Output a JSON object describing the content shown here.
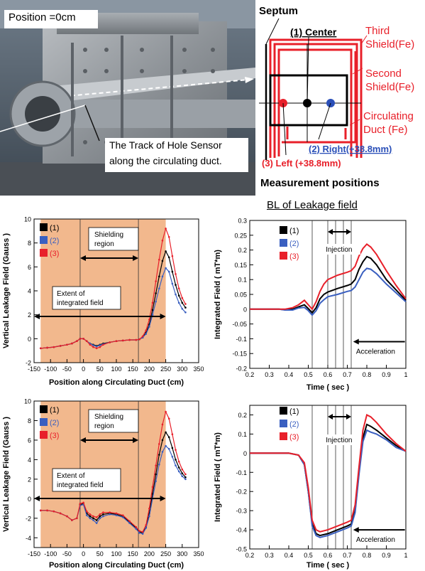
{
  "photo": {
    "position_label": "Position =0cm",
    "track_label": [
      "The Track of Hole Sensor",
      "along the circulating duct."
    ]
  },
  "schematic": {
    "septum": "Septum",
    "third_shield": [
      "Third",
      "Shield(Fe)"
    ],
    "second_shield": [
      "Second",
      "Shield(Fe)"
    ],
    "duct": [
      "Circulating",
      "Duct (Fe)"
    ],
    "center": "(1) Center",
    "right": "(2) Right(+38.8mm)",
    "left": "(3) Left (+38.8mm)",
    "caption": "Measurement positions",
    "colors": {
      "center": "#000000",
      "right": "#2a4fb8",
      "left": "#e8202a"
    }
  },
  "section_title": "BL of Leakage field",
  "legend": [
    "(1)",
    "(2)",
    "(3)"
  ],
  "colors": {
    "s1": "#000000",
    "s2": "#3a5fc0",
    "s3": "#e8202a",
    "shade": "#f2b88d"
  },
  "chart_data": [
    {
      "type": "line",
      "panel": "top-left",
      "xlabel": "Position along Circulating Duct (cm)",
      "ylabel": "Vertical  Leakage Field (Gauss )",
      "xlim": [
        -150,
        350
      ],
      "ylim": [
        -2,
        10
      ],
      "xticks": [
        -150,
        -100,
        -50,
        0,
        50,
        100,
        150,
        200,
        250,
        300,
        350
      ],
      "yticks": [
        -2,
        0,
        2,
        4,
        6,
        8,
        10
      ],
      "shaded_range": [
        -130,
        250
      ],
      "vlines": [
        -10,
        167
      ],
      "annotations": [
        "Shielding region",
        "Extent of integrated field"
      ],
      "x": [
        -130,
        -110,
        -90,
        -70,
        -50,
        -35,
        -20,
        -10,
        0,
        10,
        20,
        30,
        40,
        50,
        60,
        80,
        100,
        120,
        140,
        160,
        170,
        180,
        190,
        200,
        210,
        220,
        230,
        240,
        250,
        260,
        270,
        280,
        290,
        300,
        310
      ],
      "series": [
        {
          "name": "(1)",
          "values": [
            -0.8,
            -0.75,
            -0.7,
            -0.6,
            -0.5,
            -0.4,
            -0.2,
            0.0,
            0.0,
            -0.2,
            -0.4,
            -0.5,
            -0.6,
            -0.5,
            -0.4,
            -0.3,
            -0.2,
            -0.15,
            -0.1,
            -0.1,
            -0.05,
            0.1,
            0.5,
            1.2,
            2.4,
            3.8,
            5.2,
            6.5,
            7.3,
            6.8,
            5.6,
            4.5,
            3.6,
            3.0,
            2.6
          ]
        },
        {
          "name": "(2)",
          "values": [
            -0.8,
            -0.75,
            -0.7,
            -0.6,
            -0.5,
            -0.4,
            -0.2,
            0.0,
            0.0,
            -0.2,
            -0.4,
            -0.55,
            -0.65,
            -0.55,
            -0.45,
            -0.3,
            -0.2,
            -0.15,
            -0.1,
            -0.1,
            -0.05,
            0.1,
            0.4,
            1.0,
            2.0,
            3.1,
            4.2,
            5.2,
            5.9,
            5.6,
            4.6,
            3.7,
            3.0,
            2.5,
            2.2
          ]
        },
        {
          "name": "(3)",
          "values": [
            -0.8,
            -0.75,
            -0.7,
            -0.6,
            -0.5,
            -0.4,
            -0.2,
            0.0,
            0.0,
            -0.2,
            -0.5,
            -0.7,
            -0.8,
            -0.7,
            -0.5,
            -0.3,
            -0.2,
            -0.15,
            -0.1,
            -0.1,
            -0.05,
            0.2,
            0.7,
            1.6,
            3.0,
            4.8,
            6.6,
            8.2,
            9.2,
            8.5,
            6.9,
            5.4,
            4.2,
            3.4,
            2.9
          ]
        }
      ]
    },
    {
      "type": "line",
      "panel": "top-right",
      "xlabel": "Time ( sec )",
      "ylabel": "Integrated Field ( mT*m)",
      "xlim": [
        0.2,
        1.0
      ],
      "ylim": [
        -0.2,
        0.3
      ],
      "xticks": [
        0.2,
        0.3,
        0.4,
        0.5,
        0.6,
        0.7,
        0.8,
        0.9,
        1.0
      ],
      "yticks": [
        -0.2,
        -0.15,
        -0.1,
        -0.05,
        0,
        0.05,
        0.1,
        0.15,
        0.2,
        0.25,
        0.3
      ],
      "vlines": [
        0.52,
        0.6,
        0.64,
        0.68,
        0.72
      ],
      "annotations": [
        "Injection",
        "Acceleration"
      ],
      "x": [
        0.2,
        0.3,
        0.35,
        0.38,
        0.42,
        0.45,
        0.48,
        0.5,
        0.52,
        0.54,
        0.56,
        0.58,
        0.6,
        0.65,
        0.7,
        0.72,
        0.74,
        0.76,
        0.78,
        0.8,
        0.82,
        0.85,
        0.9,
        0.95,
        1.0
      ],
      "series": [
        {
          "name": "(1)",
          "values": [
            0,
            0,
            0,
            -0.002,
            0.0,
            0.008,
            0.015,
            0.002,
            -0.012,
            0.005,
            0.035,
            0.05,
            0.058,
            0.07,
            0.08,
            0.085,
            0.1,
            0.135,
            0.16,
            0.178,
            0.172,
            0.15,
            0.1,
            0.065,
            0.03
          ]
        },
        {
          "name": "(2)",
          "values": [
            0,
            0,
            0,
            -0.003,
            -0.003,
            0.004,
            0.006,
            -0.005,
            -0.02,
            -0.005,
            0.02,
            0.032,
            0.042,
            0.05,
            0.06,
            0.063,
            0.075,
            0.1,
            0.125,
            0.138,
            0.135,
            0.12,
            0.085,
            0.055,
            0.025
          ]
        },
        {
          "name": "(3)",
          "values": [
            0,
            0,
            0,
            0.0,
            0.005,
            0.015,
            0.03,
            0.015,
            0.0,
            0.025,
            0.06,
            0.085,
            0.1,
            0.115,
            0.125,
            0.13,
            0.145,
            0.18,
            0.205,
            0.22,
            0.21,
            0.185,
            0.13,
            0.08,
            0.035
          ]
        }
      ]
    },
    {
      "type": "line",
      "panel": "bottom-left",
      "xlabel": "Position along Circulating Duct (cm)",
      "ylabel": "Vertical  Leakage Field (Gauss )",
      "xlim": [
        -150,
        350
      ],
      "ylim": [
        -5,
        10
      ],
      "xticks": [
        -150,
        -100,
        -50,
        0,
        50,
        100,
        150,
        200,
        250,
        300,
        350
      ],
      "yticks": [
        -4,
        -2,
        0,
        2,
        4,
        6,
        8,
        10
      ],
      "shaded_range": [
        -130,
        250
      ],
      "vlines": [
        -10,
        167
      ],
      "annotations": [
        "Shielding region",
        "Extent of integrated field"
      ],
      "x": [
        -130,
        -110,
        -90,
        -70,
        -50,
        -35,
        -20,
        -10,
        0,
        10,
        20,
        30,
        40,
        50,
        60,
        80,
        100,
        120,
        140,
        160,
        170,
        180,
        190,
        200,
        210,
        220,
        230,
        240,
        250,
        260,
        270,
        280,
        290,
        300,
        310
      ],
      "series": [
        {
          "name": "(1)",
          "values": [
            -1.2,
            -1.2,
            -1.3,
            -1.5,
            -1.8,
            -2.2,
            -2.0,
            -0.6,
            -0.5,
            -1.5,
            -1.8,
            -2.0,
            -2.2,
            -1.8,
            -1.6,
            -1.5,
            -1.6,
            -1.8,
            -2.4,
            -3.0,
            -3.4,
            -3.5,
            -2.9,
            -1.5,
            0.5,
            2.5,
            4.5,
            6.0,
            6.8,
            6.3,
            5.2,
            4.0,
            3.2,
            2.6,
            2.2
          ]
        },
        {
          "name": "(2)",
          "values": [
            -1.2,
            -1.2,
            -1.3,
            -1.5,
            -1.8,
            -2.2,
            -2.0,
            -0.7,
            -0.6,
            -1.7,
            -2.0,
            -2.2,
            -2.5,
            -2.0,
            -1.8,
            -1.6,
            -1.7,
            -1.9,
            -2.5,
            -3.1,
            -3.5,
            -3.6,
            -3.0,
            -1.8,
            0.0,
            1.8,
            3.5,
            4.8,
            5.4,
            5.1,
            4.3,
            3.4,
            2.8,
            2.3,
            2.0
          ]
        },
        {
          "name": "(3)",
          "values": [
            -1.2,
            -1.2,
            -1.3,
            -1.5,
            -1.8,
            -2.2,
            -2.0,
            -0.5,
            -0.4,
            -1.3,
            -1.6,
            -1.8,
            -1.9,
            -1.6,
            -1.4,
            -1.4,
            -1.5,
            -1.7,
            -2.3,
            -2.9,
            -3.3,
            -3.4,
            -2.7,
            -1.0,
            1.2,
            3.4,
            5.6,
            7.6,
            8.9,
            8.2,
            6.6,
            5.0,
            3.8,
            3.0,
            2.5
          ]
        }
      ]
    },
    {
      "type": "line",
      "panel": "bottom-right",
      "xlabel": "Time ( sec )",
      "ylabel": "Integrated Field ( mT*m)",
      "xlim": [
        0.2,
        1.0
      ],
      "ylim": [
        -0.5,
        0.25
      ],
      "xticks": [
        0.2,
        0.3,
        0.4,
        0.5,
        0.6,
        0.7,
        0.8,
        0.9,
        1.0
      ],
      "yticks": [
        -0.5,
        -0.4,
        -0.3,
        -0.2,
        -0.1,
        0,
        0.1,
        0.2
      ],
      "vlines": [
        0.52,
        0.6,
        0.64,
        0.68,
        0.72
      ],
      "annotations": [
        "Injection",
        "Acceleration"
      ],
      "x": [
        0.2,
        0.3,
        0.4,
        0.45,
        0.48,
        0.5,
        0.52,
        0.54,
        0.56,
        0.6,
        0.65,
        0.7,
        0.72,
        0.74,
        0.76,
        0.78,
        0.8,
        0.82,
        0.85,
        0.9,
        0.95,
        1.0
      ],
      "series": [
        {
          "name": "(1)",
          "values": [
            0,
            0,
            0,
            -0.01,
            -0.06,
            -0.2,
            -0.37,
            -0.42,
            -0.43,
            -0.42,
            -0.4,
            -0.38,
            -0.37,
            -0.3,
            -0.1,
            0.08,
            0.15,
            0.14,
            0.12,
            0.08,
            0.04,
            0.01
          ]
        },
        {
          "name": "(2)",
          "values": [
            0,
            0,
            0,
            -0.01,
            -0.06,
            -0.2,
            -0.38,
            -0.43,
            -0.44,
            -0.43,
            -0.41,
            -0.39,
            -0.38,
            -0.31,
            -0.11,
            0.06,
            0.12,
            0.11,
            0.1,
            0.07,
            0.03,
            0.01
          ]
        },
        {
          "name": "(3)",
          "values": [
            0,
            0,
            0,
            -0.01,
            -0.05,
            -0.18,
            -0.35,
            -0.4,
            -0.41,
            -0.4,
            -0.38,
            -0.36,
            -0.35,
            -0.27,
            -0.07,
            0.12,
            0.2,
            0.19,
            0.16,
            0.1,
            0.05,
            0.01
          ]
        }
      ]
    }
  ]
}
